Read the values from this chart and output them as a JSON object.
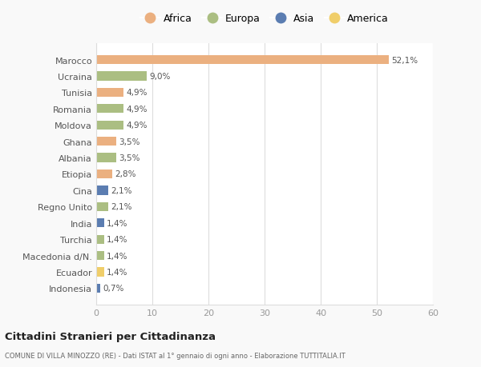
{
  "countries": [
    "Marocco",
    "Ucraina",
    "Tunisia",
    "Romania",
    "Moldova",
    "Ghana",
    "Albania",
    "Etiopia",
    "Cina",
    "Regno Unito",
    "India",
    "Turchia",
    "Macedonia d/N.",
    "Ecuador",
    "Indonesia"
  ],
  "values": [
    52.1,
    9.0,
    4.9,
    4.9,
    4.9,
    3.5,
    3.5,
    2.8,
    2.1,
    2.1,
    1.4,
    1.4,
    1.4,
    1.4,
    0.7
  ],
  "labels": [
    "52,1%",
    "9,0%",
    "4,9%",
    "4,9%",
    "4,9%",
    "3,5%",
    "3,5%",
    "2,8%",
    "2,1%",
    "2,1%",
    "1,4%",
    "1,4%",
    "1,4%",
    "1,4%",
    "0,7%"
  ],
  "continents": [
    "Africa",
    "Europa",
    "Africa",
    "Europa",
    "Europa",
    "Africa",
    "Europa",
    "Africa",
    "Asia",
    "Europa",
    "Asia",
    "Europa",
    "Europa",
    "America",
    "Asia"
  ],
  "continent_colors": {
    "Africa": "#EBB080",
    "Europa": "#ABBE82",
    "Asia": "#5B7DB1",
    "America": "#F0CE6A"
  },
  "legend_order": [
    "Africa",
    "Europa",
    "Asia",
    "America"
  ],
  "title": "Cittadini Stranieri per Cittadinanza",
  "subtitle": "COMUNE DI VILLA MINOZZO (RE) - Dati ISTAT al 1° gennaio di ogni anno - Elaborazione TUTTITALIA.IT",
  "xlim": [
    0,
    60
  ],
  "xticks": [
    0,
    10,
    20,
    30,
    40,
    50,
    60
  ],
  "bg_color": "#f9f9f9",
  "bar_bg_color": "#ffffff",
  "grid_color": "#dddddd"
}
